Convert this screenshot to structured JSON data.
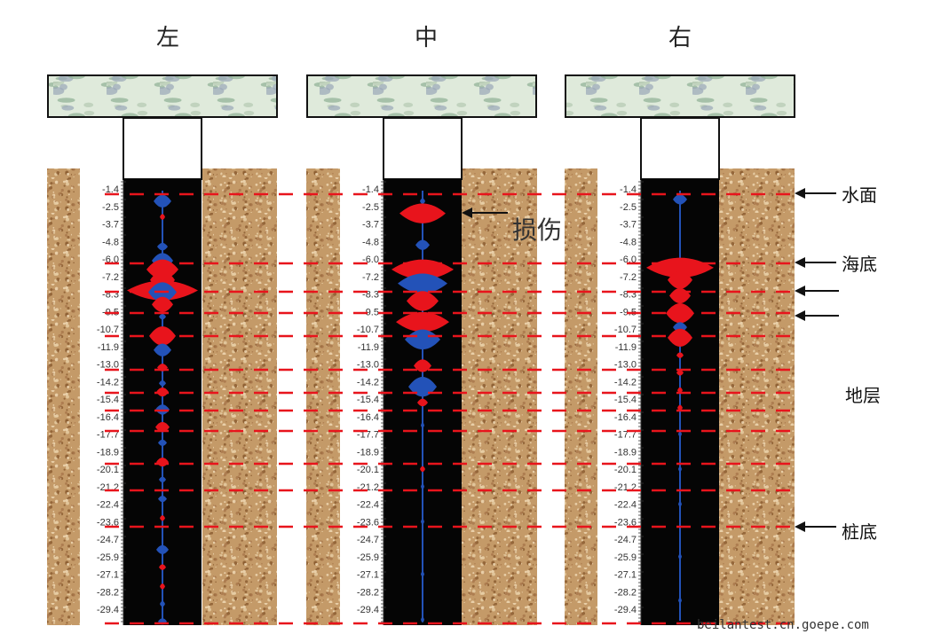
{
  "columns": [
    {
      "title": "左"
    },
    {
      "title": "中"
    },
    {
      "title": "右"
    }
  ],
  "depth_labels": [
    "-1.4",
    "-2.5",
    "-3.7",
    "-4.8",
    "-6.0",
    "-7.2",
    "-8.3",
    "-9.5",
    "-10.7",
    "-11.9",
    "-13.0",
    "-14.2",
    "-15.4",
    "-16.4",
    "-17.7",
    "-18.9",
    "-20.1",
    "-21.2",
    "-22.4",
    "-23.6",
    "-24.7",
    "-25.9",
    "-27.1",
    "-28.2",
    "-29.4"
  ],
  "annotations": {
    "damage": "损伤",
    "water_surface": "水面",
    "seabed": "海底",
    "stratum": "地层",
    "pile_bottom": "桩底"
  },
  "watermark": "beilantest.cn.goepe.com",
  "colors": {
    "dashed_line": "#e8141c",
    "signal_positive": "#e8141c",
    "signal_negative": "#2352b8",
    "shaft": "#050505",
    "soil": "#c49a68",
    "cap": "#dfeadb"
  }
}
